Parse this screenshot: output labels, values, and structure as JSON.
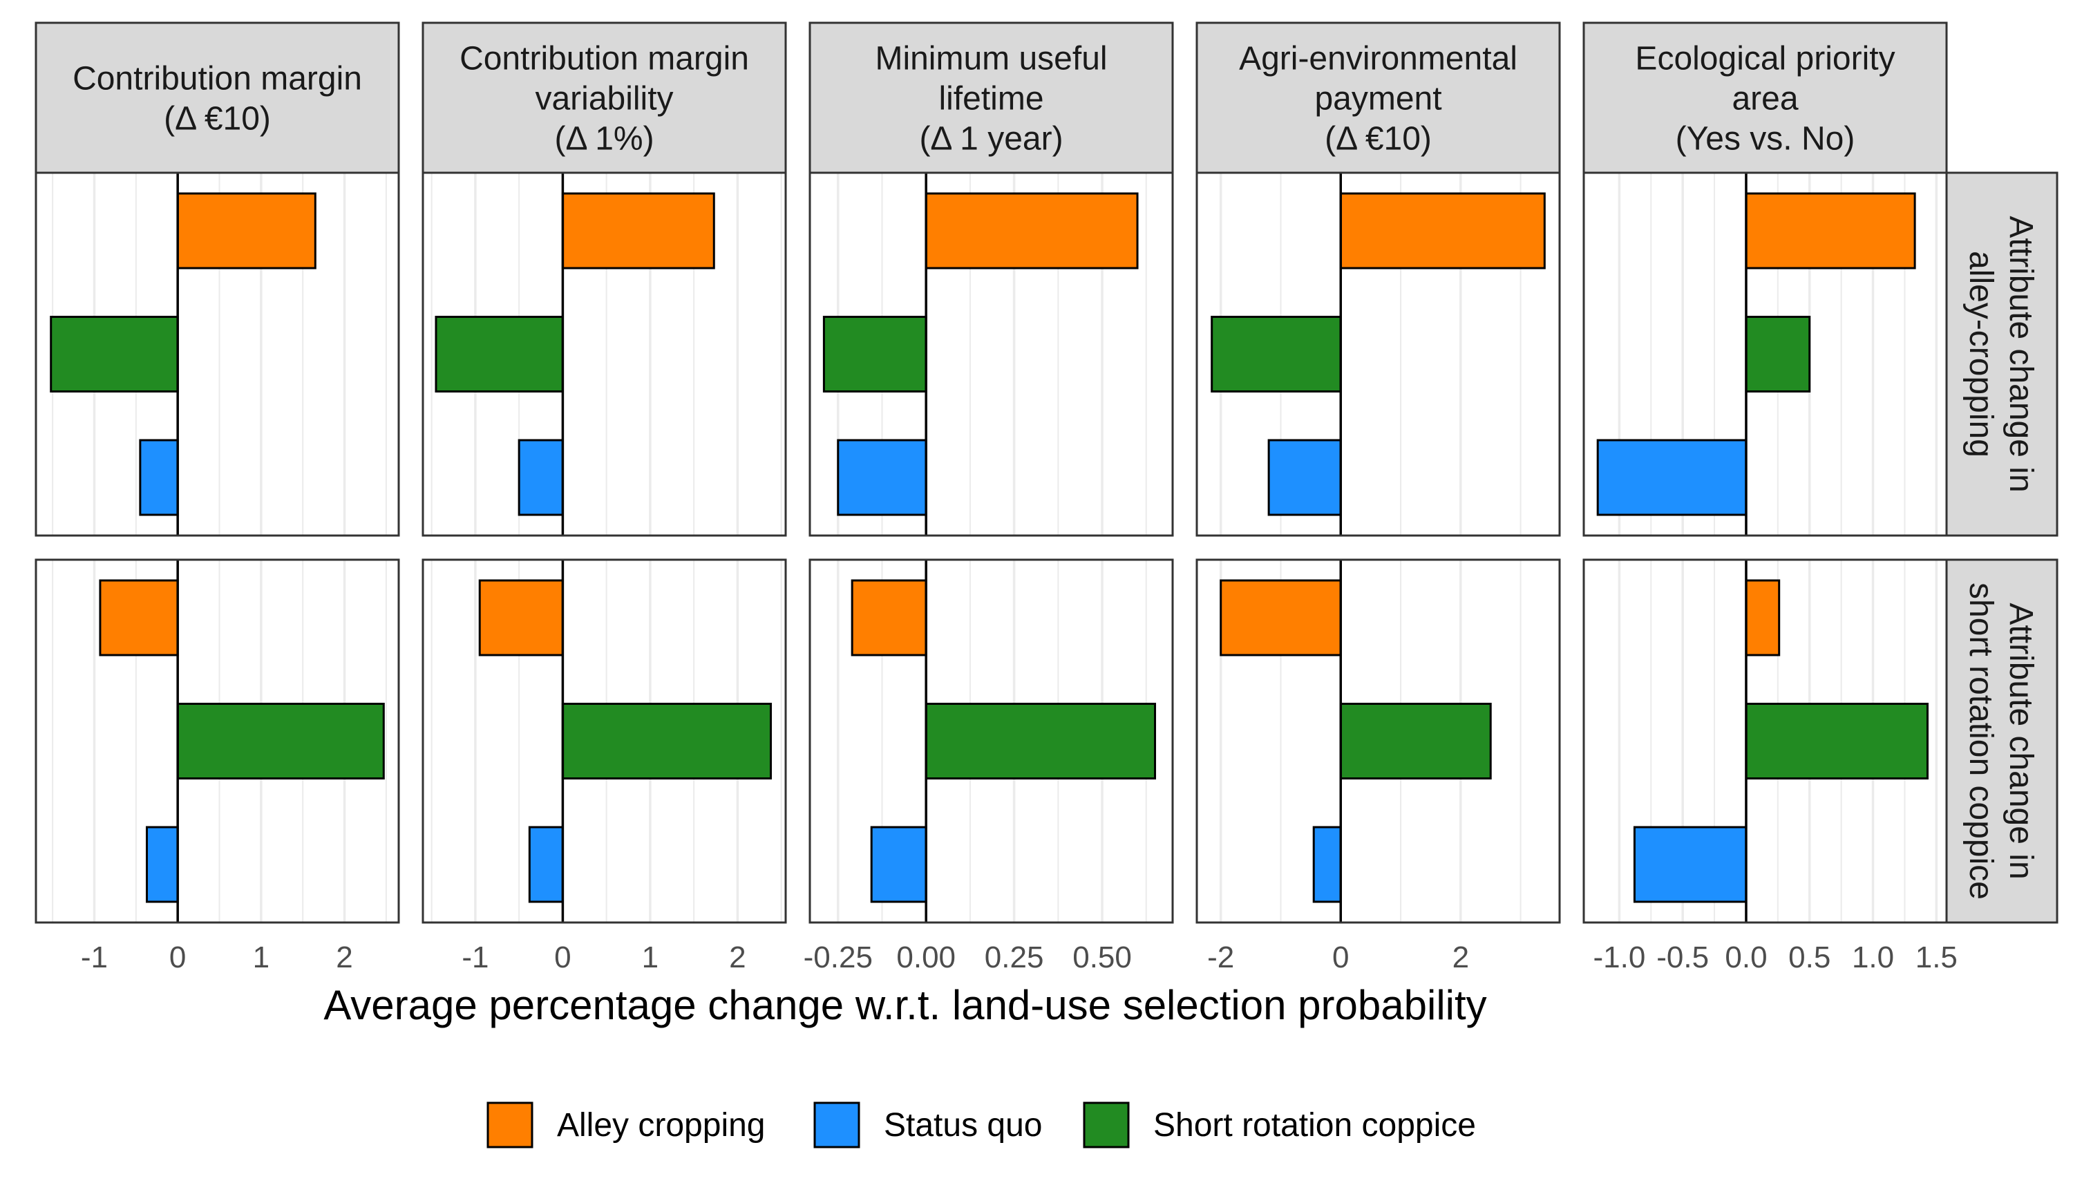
{
  "chart_data": {
    "type": "bar",
    "orientation": "horizontal",
    "facets": "grid",
    "xlabel": "Average percentage change w.r.t. land-use selection probability",
    "legend_position": "bottom",
    "grid": true,
    "colors": {
      "Alley cropping": "#FF7F00",
      "Status quo": "#1E90FF",
      "Short rotation coppice": "#228B22",
      "strip_fill": "#D9D9D9",
      "grid": "#EBEBEB"
    },
    "legend": [
      "Alley cropping",
      "Status quo",
      "Short rotation coppice"
    ],
    "bar_order": [
      "Alley cropping",
      "Short rotation coppice",
      "Status quo"
    ],
    "rows": [
      {
        "id": "ac",
        "label": "Attribute change in alley-cropping",
        "lines": [
          "Attribute change in",
          "alley-cropping"
        ]
      },
      {
        "id": "src",
        "label": "Attribute change in short rotation coppice",
        "lines": [
          "Attribute change in",
          "short rotation coppice"
        ]
      }
    ],
    "columns": [
      {
        "label": "Contribution margin (Δ €10)",
        "lines": [
          "Contribution margin",
          "(Δ €10)"
        ],
        "xlim": [
          -1.7,
          2.65
        ],
        "ticks": [
          -1,
          0,
          1,
          2
        ],
        "tick_labels": [
          "-1",
          "0",
          "1",
          "2"
        ],
        "minor_grid": [
          -1.5,
          -0.5,
          0.5,
          1.5,
          2.5
        ],
        "values": {
          "ac": {
            "Alley cropping": 1.65,
            "Short rotation coppice": -1.52,
            "Status quo": -0.45
          },
          "src": {
            "Alley cropping": -0.93,
            "Short rotation coppice": 2.47,
            "Status quo": -0.37
          }
        }
      },
      {
        "label": "Contribution margin variability (Δ 1%)",
        "lines": [
          "Contribution margin",
          "variability",
          "(Δ 1%)"
        ],
        "xlim": [
          -1.6,
          2.55
        ],
        "ticks": [
          -1,
          0,
          1,
          2
        ],
        "tick_labels": [
          "-1",
          "0",
          "1",
          "2"
        ],
        "minor_grid": [
          -1.5,
          -0.5,
          0.5,
          1.5,
          2.5
        ],
        "values": {
          "ac": {
            "Alley cropping": 1.73,
            "Short rotation coppice": -1.45,
            "Status quo": -0.5
          },
          "src": {
            "Alley cropping": -0.95,
            "Short rotation coppice": 2.38,
            "Status quo": -0.38
          }
        }
      },
      {
        "label": "Minimum useful lifetime (Δ 1 year)",
        "lines": [
          "Minimum useful",
          "lifetime",
          "(Δ 1 year)"
        ],
        "xlim": [
          -0.33,
          0.7
        ],
        "ticks": [
          -0.25,
          0,
          0.25,
          0.5
        ],
        "tick_labels": [
          "-0.25",
          "0.00",
          "0.25",
          "0.50"
        ],
        "minor_grid": [
          -0.125,
          0.125,
          0.375,
          0.625
        ],
        "values": {
          "ac": {
            "Alley cropping": 0.6,
            "Short rotation coppice": -0.29,
            "Status quo": -0.25
          },
          "src": {
            "Alley cropping": -0.21,
            "Short rotation coppice": 0.65,
            "Status quo": -0.155
          }
        }
      },
      {
        "label": "Agri-environmental payment (Δ €10)",
        "lines": [
          "Agri-environmental",
          "payment",
          "(Δ €10)"
        ],
        "xlim": [
          -2.4,
          3.65
        ],
        "ticks": [
          -2,
          0,
          2
        ],
        "tick_labels": [
          "-2",
          "0",
          "2"
        ],
        "minor_grid": [
          -1,
          1,
          3
        ],
        "values": {
          "ac": {
            "Alley cropping": 3.4,
            "Short rotation coppice": -2.15,
            "Status quo": -1.2
          },
          "src": {
            "Alley cropping": -2.0,
            "Short rotation coppice": 2.5,
            "Status quo": -0.45
          }
        }
      },
      {
        "label": "Ecological priority area (Yes vs. No)",
        "lines": [
          "Ecological priority",
          "area",
          "(Yes vs. No)"
        ],
        "xlim": [
          -1.28,
          1.58
        ],
        "ticks": [
          -1.0,
          -0.5,
          0.0,
          0.5,
          1.0,
          1.5
        ],
        "tick_labels": [
          "-1.0",
          "-0.5",
          "0.0",
          "0.5",
          "1.0",
          "1.5"
        ],
        "minor_grid": [
          -0.75,
          -0.25,
          0.25,
          0.75,
          1.25
        ],
        "values": {
          "ac": {
            "Alley cropping": 1.33,
            "Short rotation coppice": 0.5,
            "Status quo": -1.17
          },
          "src": {
            "Alley cropping": 0.26,
            "Short rotation coppice": 1.43,
            "Status quo": -0.88
          }
        }
      }
    ]
  }
}
